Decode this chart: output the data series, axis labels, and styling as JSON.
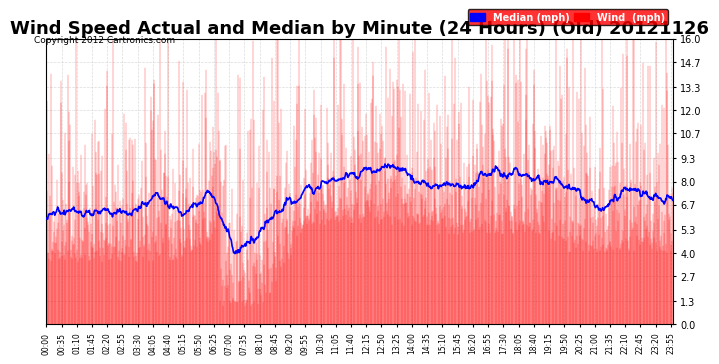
{
  "title": "Wind Speed Actual and Median by Minute (24 Hours) (Old) 20121126",
  "copyright": "Copyright 2012 Cartronics.com",
  "yticks": [
    0.0,
    1.3,
    2.7,
    4.0,
    5.3,
    6.7,
    8.0,
    9.3,
    10.7,
    12.0,
    13.3,
    14.7,
    16.0
  ],
  "ylim": [
    0.0,
    16.0
  ],
  "xlabel": "",
  "ylabel": "",
  "background_color": "#ffffff",
  "plot_bg_color": "#ffffff",
  "grid_color": "#cccccc",
  "wind_color": "#ff0000",
  "median_color": "#0000ff",
  "bar_color_dark": "#333333",
  "title_fontsize": 13,
  "legend_median_color": "#0000ff",
  "legend_wind_color": "#ff0000",
  "legend_bg": "#ff0000",
  "n_minutes": 1440
}
